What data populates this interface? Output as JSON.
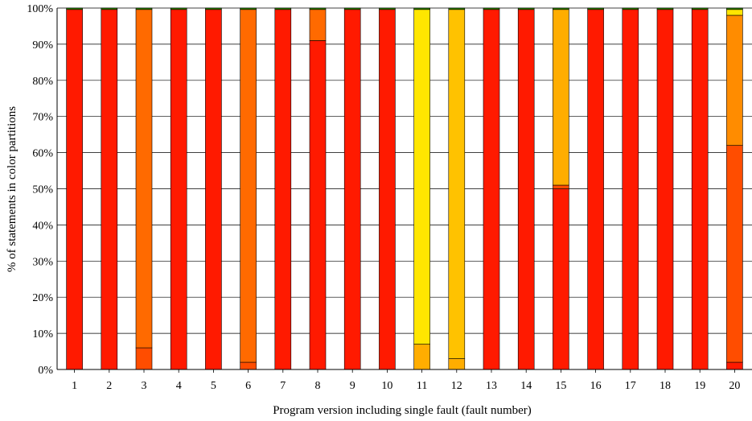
{
  "chart_data": {
    "type": "bar",
    "stacked": true,
    "title": "",
    "xlabel": "Program version including single fault (fault number)",
    "ylabel": "% of statements in color partitions",
    "ylim": [
      0,
      100
    ],
    "ytick_labels": [
      "0%",
      "10%",
      "20%",
      "30%",
      "40%",
      "50%",
      "60%",
      "70%",
      "80%",
      "90%",
      "100%"
    ],
    "categories": [
      "1",
      "2",
      "3",
      "4",
      "5",
      "6",
      "7",
      "8",
      "9",
      "10",
      "11",
      "12",
      "13",
      "14",
      "15",
      "16",
      "17",
      "18",
      "19",
      "20"
    ],
    "grid": true,
    "legend": "none",
    "series": [
      {
        "color": "#ff1a00",
        "values": [
          99.6,
          99.6,
          0,
          99.6,
          99.6,
          0,
          99.6,
          91,
          99.6,
          99.6,
          0,
          0,
          99.6,
          99.6,
          50,
          99.6,
          99.6,
          99.6,
          99.6,
          2
        ]
      },
      {
        "color": "#ff4d00",
        "values": [
          0,
          0,
          6,
          0,
          0,
          2,
          0,
          0,
          0,
          0,
          0,
          0,
          0,
          0,
          1,
          0,
          0,
          0,
          0,
          60
        ]
      },
      {
        "color": "#ff6a00",
        "values": [
          0,
          0,
          93.6,
          0,
          0,
          97.6,
          0,
          8.6,
          0,
          0,
          0,
          0,
          0,
          0,
          0,
          0,
          0,
          0,
          0,
          0
        ]
      },
      {
        "color": "#ff8c00",
        "values": [
          0,
          0,
          0,
          0,
          0,
          0,
          0,
          0,
          0,
          0,
          0,
          0,
          0,
          0,
          0,
          0,
          0,
          0,
          0,
          36
        ]
      },
      {
        "color": "#ffad00",
        "values": [
          0,
          0,
          0,
          0,
          0,
          0,
          0,
          0,
          0,
          0,
          7,
          3,
          0,
          0,
          48.6,
          0,
          0,
          0,
          0,
          0
        ]
      },
      {
        "color": "#ffc200",
        "values": [
          0,
          0,
          0,
          0,
          0,
          0,
          0,
          0,
          0,
          0,
          0,
          96.6,
          0,
          0,
          0,
          0,
          0,
          0,
          0,
          0
        ]
      },
      {
        "color": "#ffe600",
        "values": [
          0,
          0,
          0,
          0,
          0,
          0,
          0,
          0,
          0,
          0,
          92.6,
          0,
          0,
          0,
          0,
          0,
          0,
          0,
          0,
          1.6
        ]
      },
      {
        "color": "#2e8b00",
        "values": [
          0.4,
          0.4,
          0.4,
          0.4,
          0.4,
          0.4,
          0.4,
          0.4,
          0.4,
          0.4,
          0.4,
          0.4,
          0.4,
          0.4,
          0.4,
          0.4,
          0.4,
          0.4,
          0.4,
          0.4
        ]
      }
    ]
  }
}
